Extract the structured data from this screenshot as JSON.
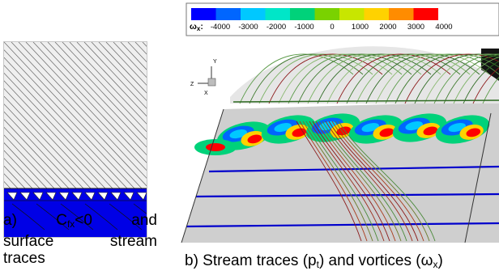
{
  "panel_a": {
    "caption": {
      "label": "a)",
      "c_symbol": "C",
      "c_sub": "fx",
      "condition": "<0",
      "and": "and",
      "surface": "surface",
      "stream": "stream",
      "traces": "traces"
    }
  },
  "panel_b": {
    "caption": {
      "text_prefix": "b) Stream traces (p",
      "p_sub": "t",
      "text_mid": ") and vortices (",
      "omega": "ω",
      "omega_sub": "x",
      "text_suffix": ")"
    },
    "legend": {
      "symbol": "ω",
      "symbol_sub": "x",
      "colon": ":",
      "levels": [
        "-4000",
        "-3000",
        "-2000",
        "-1000",
        "0",
        "1000",
        "2000",
        "3000",
        "4000"
      ],
      "colors": [
        "#0000ff",
        "#0066ff",
        "#00c8ff",
        "#00e6c8",
        "#00d27a",
        "#7ad200",
        "#c8e600",
        "#ffd200",
        "#ff8c00",
        "#ff0000"
      ]
    },
    "axes": {
      "y": "Y",
      "z": "Z",
      "x": "X"
    }
  },
  "colors": {
    "surface_grey": "#cfcfcf",
    "blue_region": "#0000e6",
    "streamline_green": "#4a8a3a",
    "streamline_red": "#8b1a1a"
  }
}
